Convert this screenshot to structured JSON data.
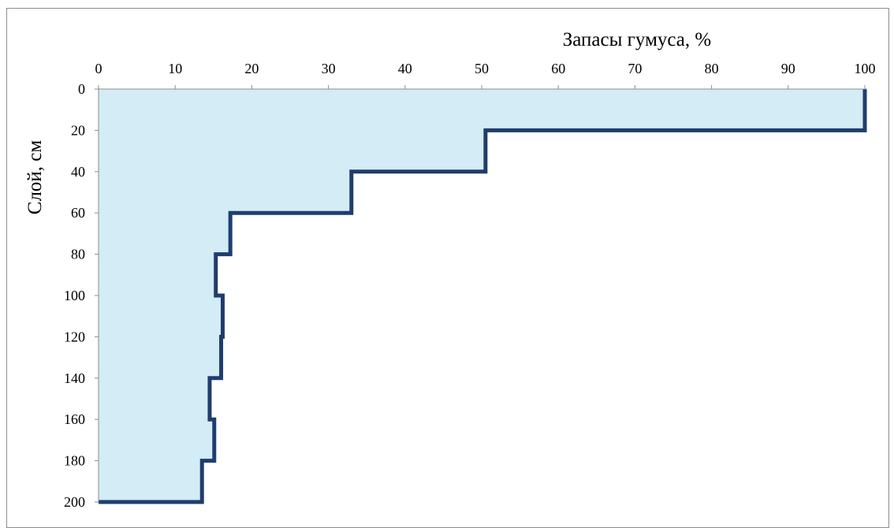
{
  "chart_data": {
    "type": "area",
    "title": "",
    "xlabel": "Запасы гумуса,  %",
    "ylabel": "Слой, см",
    "x_axis_position": "top",
    "y_axis_inverted": true,
    "xlim": [
      0,
      100
    ],
    "ylim": [
      0,
      200
    ],
    "x_ticks": [
      "0",
      "10",
      "20",
      "30",
      "40",
      "50",
      "60",
      "70",
      "80",
      "90",
      "100"
    ],
    "y_ticks": [
      "0",
      "20",
      "40",
      "60",
      "80",
      "100",
      "120",
      "140",
      "160",
      "180",
      "200"
    ],
    "grid": false,
    "legend": "none",
    "steps": [
      {
        "depth_from": 0,
        "depth_to": 20,
        "value": 100
      },
      {
        "depth_from": 20,
        "depth_to": 40,
        "value": 50.5
      },
      {
        "depth_from": 40,
        "depth_to": 60,
        "value": 33
      },
      {
        "depth_from": 60,
        "depth_to": 80,
        "value": 17.2
      },
      {
        "depth_from": 80,
        "depth_to": 100,
        "value": 15.3
      },
      {
        "depth_from": 100,
        "depth_to": 120,
        "value": 16.2
      },
      {
        "depth_from": 120,
        "depth_to": 140,
        "value": 16
      },
      {
        "depth_from": 140,
        "depth_to": 160,
        "value": 14.5
      },
      {
        "depth_from": 160,
        "depth_to": 180,
        "value": 15.1
      },
      {
        "depth_from": 180,
        "depth_to": 200,
        "value": 13.5
      }
    ],
    "colors": {
      "line": "#1f3d6e",
      "fill": "#d3ecf5",
      "axis": "#8c8c8c"
    }
  }
}
